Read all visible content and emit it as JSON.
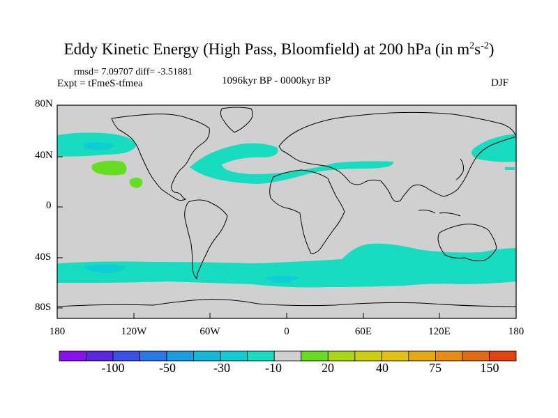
{
  "title": {
    "main": "Eddy Kinetic Energy (High Pass, Bloomfield) at 200 hPa (in m",
    "sup1": "2",
    "mid": "s",
    "sup2": "-2",
    "close": ")"
  },
  "stats": "rmsd= 7.09707 diff= -3.51881",
  "experiment": "Expt = tFmeS-tfmea",
  "period": "1096kyr BP - 0000kyr BP",
  "season": "DJF",
  "axes": {
    "y_labels": [
      "80N",
      "40N",
      "0",
      "40S",
      "80S"
    ],
    "x_labels": [
      "180",
      "120W",
      "60W",
      "0",
      "60E",
      "120E",
      "180"
    ]
  },
  "colorbar": {
    "colors": [
      "#8a10ee",
      "#5828e0",
      "#3a50e6",
      "#2a78e8",
      "#1e9ade",
      "#14b6da",
      "#10ccd4",
      "#18dcc0",
      "#d0d0d0",
      "#66dd22",
      "#a8d814",
      "#cece10",
      "#e0c010",
      "#e4aa10",
      "#e68c14",
      "#e26a14",
      "#de4414"
    ],
    "labels": [
      "-100",
      "-50",
      "-30",
      "-10",
      "20",
      "40",
      "75",
      "150"
    ]
  },
  "map": {
    "background": "#d0d0d0",
    "anomaly_negative": "#18dcc0",
    "anomaly_negative_strong": "#10ccd4",
    "anomaly_positive": "#66dd22"
  }
}
